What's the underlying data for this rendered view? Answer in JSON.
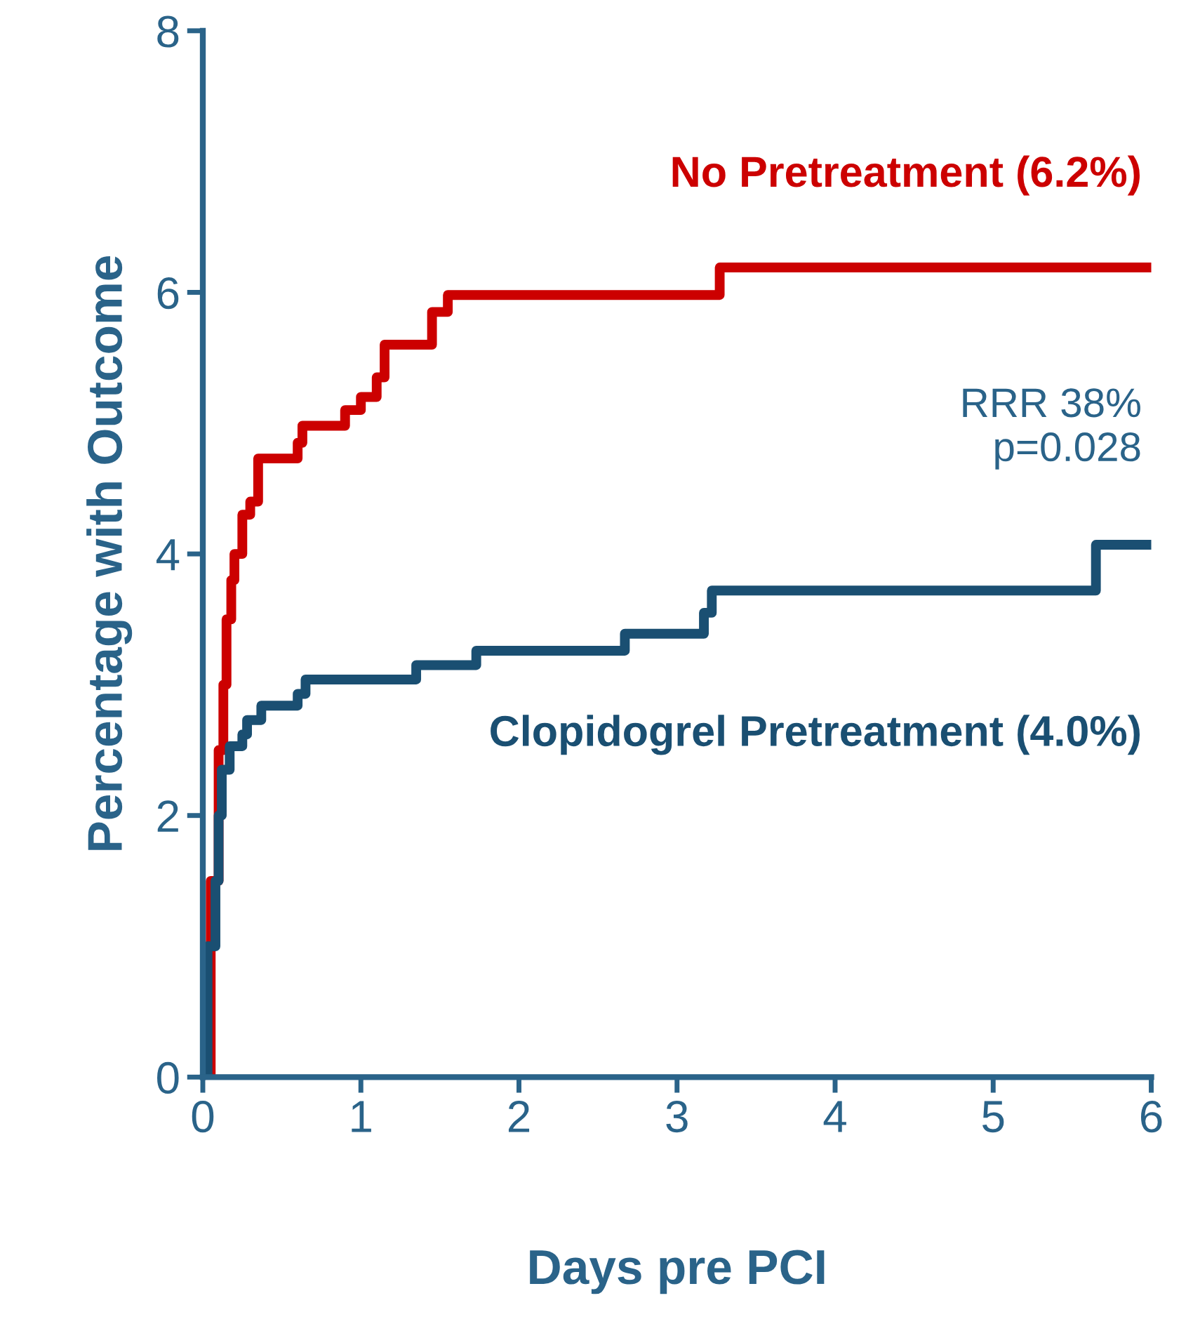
{
  "chart_data": {
    "type": "step",
    "xlabel": "Days pre PCI",
    "ylabel": "Percentage with Outcome",
    "xlim": [
      0,
      6
    ],
    "ylim": [
      0,
      8
    ],
    "xticks": [
      0,
      1,
      2,
      3,
      4,
      5,
      6
    ],
    "yticks": [
      0,
      2,
      4,
      6,
      8
    ],
    "grid": false,
    "legend": false,
    "annotations": [
      "RRR 38%\np=0.028"
    ],
    "series": [
      {
        "name": "No Pretreatment (6.2%)",
        "color": "#cc0000",
        "x": [
          0,
          0.05,
          0.1,
          0.13,
          0.15,
          0.18,
          0.2,
          0.25,
          0.3,
          0.35,
          0.6,
          0.63,
          0.9,
          1.0,
          1.1,
          1.15,
          1.45,
          1.55,
          3.27,
          6
        ],
        "values": [
          0,
          1.5,
          2.5,
          3.0,
          3.5,
          3.8,
          4.0,
          4.3,
          4.4,
          4.73,
          4.85,
          4.98,
          5.1,
          5.2,
          5.35,
          5.6,
          5.85,
          5.98,
          6.19,
          6.19
        ]
      },
      {
        "name": "Clopidogrel Pretreatment (4.0%)",
        "color": "#1a4f72",
        "x": [
          0,
          0.03,
          0.08,
          0.1,
          0.12,
          0.17,
          0.25,
          0.28,
          0.37,
          0.6,
          0.65,
          1.35,
          1.73,
          2.67,
          3.17,
          3.22,
          5.65,
          6
        ],
        "values": [
          0,
          1.0,
          1.5,
          2.0,
          2.35,
          2.53,
          2.62,
          2.73,
          2.84,
          2.93,
          3.04,
          3.15,
          3.26,
          3.39,
          3.55,
          3.72,
          4.07,
          4.07
        ]
      }
    ]
  }
}
